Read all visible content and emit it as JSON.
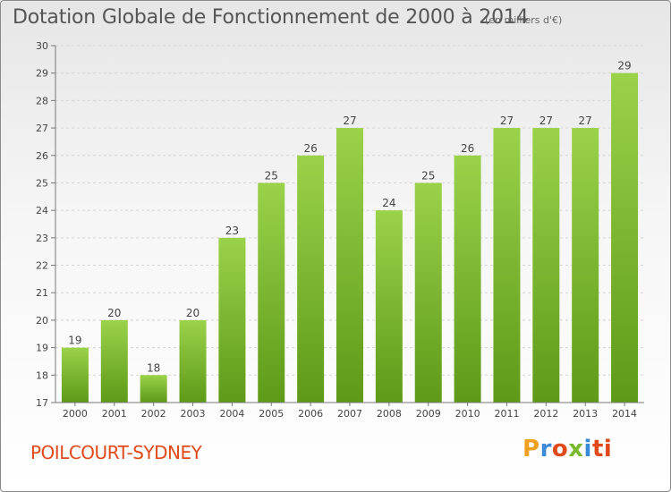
{
  "chart_data": {
    "type": "bar",
    "title": "Dotation Globale de Fonctionnement de 2000 à 2014",
    "subtitle": "(en milliers d'€)",
    "categories": [
      "2000",
      "2001",
      "2002",
      "2003",
      "2004",
      "2005",
      "2006",
      "2007",
      "2008",
      "2009",
      "2010",
      "2011",
      "2012",
      "2013",
      "2014"
    ],
    "values": [
      19,
      20,
      18,
      20,
      23,
      25,
      26,
      27,
      24,
      25,
      26,
      27,
      27,
      27,
      29
    ],
    "ylim": [
      17,
      30
    ],
    "yticks": [
      17,
      18,
      19,
      20,
      21,
      22,
      23,
      24,
      25,
      26,
      27,
      28,
      29,
      30
    ],
    "grid": true,
    "bar_color": "#7cb832"
  },
  "place": "POILCOURT-SYDNEY",
  "logo": {
    "text": "Proxiti",
    "letters": [
      "P",
      "r",
      "o",
      "x",
      "i",
      "ti"
    ]
  }
}
